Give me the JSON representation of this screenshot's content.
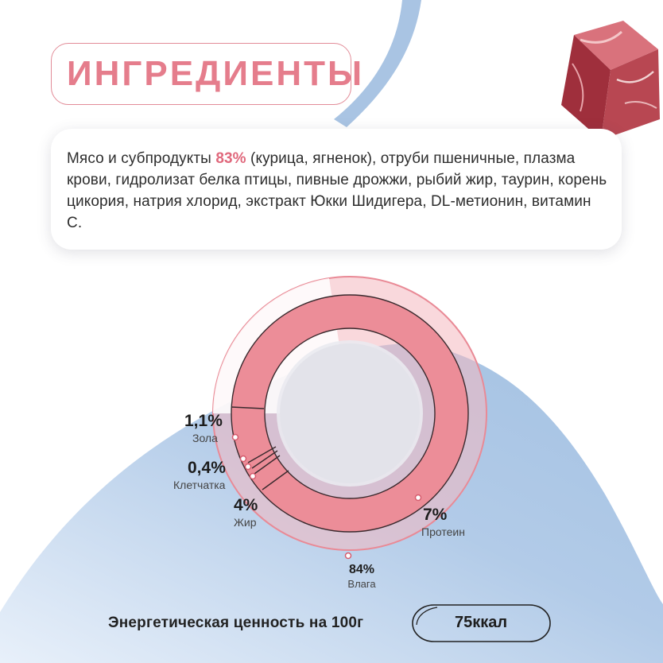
{
  "title": "ИНГРЕДИЕНТЫ",
  "ingredients": {
    "prefix": "Мясо и субпродукты ",
    "highlight": "83%",
    "suffix": " (курица, ягненок), отруби пшеничные, плазма крови, гидролизат белка птицы, пивные дрожжи, рыбий жир, таурин, корень цикория, натрия хлорид, экстракт Юкки Шидигера, DL-метионин, витамин С."
  },
  "composition": [
    {
      "name": "Зола",
      "pct": "1,1%",
      "value": 1.1
    },
    {
      "name": "Клетчатка",
      "pct": "0,4%",
      "value": 0.4
    },
    {
      "name": "Жир",
      "pct": "4%",
      "value": 4
    },
    {
      "name": "Протеин",
      "pct": "7%",
      "value": 7
    },
    {
      "name": "Влага",
      "pct": "84%",
      "value": 84
    }
  ],
  "energy": {
    "label": "Энергетическая ценность на 100г",
    "value": "75ккал"
  },
  "colors": {
    "accent": "#e57d8c",
    "ring": "#ec8d98",
    "bg_blue": "#a7c4e4",
    "soft_pink": "#f7c9cf"
  }
}
